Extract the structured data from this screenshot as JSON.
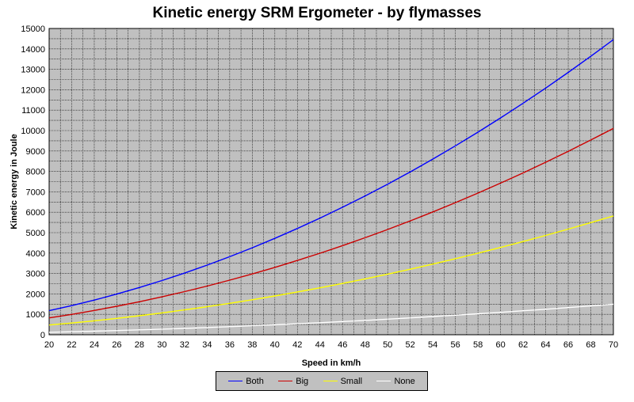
{
  "chart_data": {
    "type": "line",
    "title": "Kinetic energy SRM Ergometer - by flymasses",
    "xlabel": "Speed in km/h",
    "ylabel": "Kinetic energy in Joule",
    "xlim": [
      20,
      70
    ],
    "ylim": [
      0,
      15000
    ],
    "xticks": [
      20,
      22,
      24,
      26,
      28,
      30,
      32,
      34,
      36,
      38,
      40,
      42,
      44,
      46,
      48,
      50,
      52,
      54,
      56,
      58,
      60,
      62,
      64,
      66,
      68,
      70
    ],
    "yticks": [
      0,
      1000,
      2000,
      3000,
      4000,
      5000,
      6000,
      7000,
      8000,
      9000,
      10000,
      11000,
      12000,
      13000,
      14000,
      15000
    ],
    "grid": true,
    "plot_background": "#c0c0c0",
    "legend_position": "bottom",
    "x": [
      20,
      22,
      24,
      26,
      28,
      30,
      32,
      34,
      36,
      38,
      40,
      42,
      44,
      46,
      48,
      50,
      52,
      54,
      56,
      58,
      60,
      62,
      64,
      66,
      68,
      70
    ],
    "series": [
      {
        "name": "Both",
        "color": "#0000ff",
        "values": [
          1180,
          1428,
          1699,
          1994,
          2313,
          2655,
          3021,
          3410,
          3823,
          4260,
          4720,
          5204,
          5712,
          6243,
          6797,
          7375,
          7977,
          8603,
          9252,
          9924,
          10620,
          11340,
          12083,
          12850,
          13641,
          14455
        ]
      },
      {
        "name": "Big",
        "color": "#cc0000",
        "values": [
          825,
          998,
          1188,
          1394,
          1617,
          1856,
          2112,
          2384,
          2673,
          2978,
          3300,
          3638,
          3993,
          4364,
          4752,
          5156,
          5577,
          6014,
          6468,
          6938,
          7425,
          7928,
          8448,
          8984,
          9537,
          10106
        ]
      },
      {
        "name": "Small",
        "color": "#ffff00",
        "values": [
          475,
          575,
          684,
          803,
          931,
          1069,
          1216,
          1373,
          1539,
          1715,
          1900,
          2095,
          2299,
          2513,
          2736,
          2969,
          3211,
          3463,
          3724,
          3995,
          4275,
          4565,
          4864,
          5173,
          5491,
          5819
        ]
      },
      {
        "name": "None",
        "color": "#ffffff",
        "values": [
          122,
          148,
          176,
          206,
          239,
          275,
          312,
          353,
          395,
          440,
          488,
          538,
          591,
          646,
          703,
          763,
          825,
          890,
          957,
          1027,
          1098,
          1173,
          1250,
          1329,
          1411,
          1495
        ]
      }
    ]
  }
}
